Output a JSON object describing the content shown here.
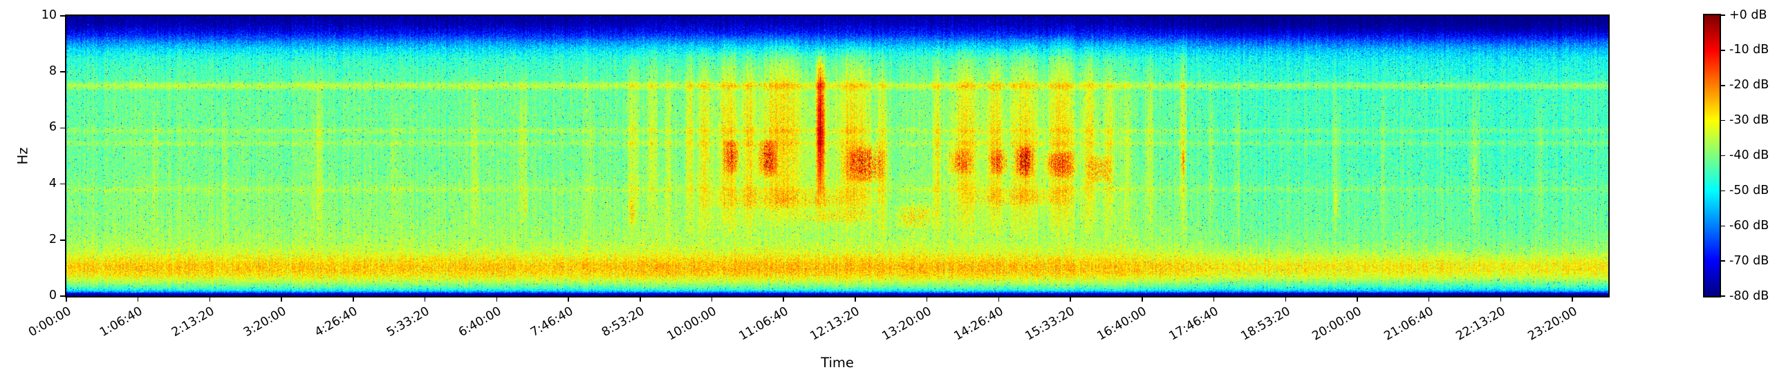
{
  "style": {
    "background_color": "#ffffff",
    "frame_color": "#000000",
    "text_color": "#000000"
  },
  "chart_data": {
    "type": "heatmap",
    "subtype": "spectrogram",
    "title": "",
    "xlabel": "Time",
    "ylabel": "Hz",
    "x_range_seconds": [
      0,
      86000
    ],
    "x_ticks": [
      {
        "seconds": 0,
        "label": "0:00:00"
      },
      {
        "seconds": 4000,
        "label": "1:06:40"
      },
      {
        "seconds": 8000,
        "label": "2:13:20"
      },
      {
        "seconds": 12000,
        "label": "3:20:00"
      },
      {
        "seconds": 16000,
        "label": "4:26:40"
      },
      {
        "seconds": 20000,
        "label": "5:33:20"
      },
      {
        "seconds": 24000,
        "label": "6:40:00"
      },
      {
        "seconds": 28000,
        "label": "7:46:40"
      },
      {
        "seconds": 32000,
        "label": "8:53:20"
      },
      {
        "seconds": 36000,
        "label": "10:00:00"
      },
      {
        "seconds": 40000,
        "label": "11:06:40"
      },
      {
        "seconds": 44000,
        "label": "12:13:20"
      },
      {
        "seconds": 48000,
        "label": "13:20:00"
      },
      {
        "seconds": 52000,
        "label": "14:26:40"
      },
      {
        "seconds": 56000,
        "label": "15:33:20"
      },
      {
        "seconds": 60000,
        "label": "16:40:00"
      },
      {
        "seconds": 64000,
        "label": "17:46:40"
      },
      {
        "seconds": 68000,
        "label": "18:53:20"
      },
      {
        "seconds": 72000,
        "label": "20:00:00"
      },
      {
        "seconds": 76000,
        "label": "21:06:40"
      },
      {
        "seconds": 80000,
        "label": "22:13:20"
      },
      {
        "seconds": 84000,
        "label": "23:20:00"
      }
    ],
    "y_range_hz": [
      0,
      10
    ],
    "y_ticks": [
      0,
      2,
      4,
      6,
      8,
      10
    ],
    "colorbar": {
      "colormap": "jet",
      "range_db": [
        -80,
        0
      ],
      "tick_values_db": [
        0,
        -10,
        -20,
        -30,
        -40,
        -50,
        -60,
        -70,
        -80
      ],
      "tick_labels": [
        "+0 dB",
        "-10 dB",
        "-20 dB",
        "-30 dB",
        "-40 dB",
        "-50 dB",
        "-60 dB",
        "-70 dB",
        "-80 dB"
      ]
    },
    "base_spectrum_db": [
      [
        0,
        -80
      ],
      [
        0.08,
        -77
      ],
      [
        0.13,
        -62
      ],
      [
        0.2,
        -50
      ],
      [
        0.3,
        -44
      ],
      [
        0.45,
        -38
      ],
      [
        0.6,
        -33
      ],
      [
        0.75,
        -28.5
      ],
      [
        0.95,
        -26
      ],
      [
        1.1,
        -26
      ],
      [
        1.3,
        -29
      ],
      [
        1.6,
        -34
      ],
      [
        2.0,
        -37
      ],
      [
        2.5,
        -38.5
      ],
      [
        3.0,
        -39
      ],
      [
        3.65,
        -39.5
      ],
      [
        3.8,
        -36.5
      ],
      [
        3.95,
        -39.5
      ],
      [
        4.5,
        -41
      ],
      [
        5.3,
        -41
      ],
      [
        5.45,
        -37.5
      ],
      [
        5.6,
        -41
      ],
      [
        5.75,
        -41
      ],
      [
        5.9,
        -37.5
      ],
      [
        6.05,
        -41.5
      ],
      [
        6.6,
        -41.5
      ],
      [
        7.1,
        -42
      ],
      [
        7.3,
        -42.5
      ],
      [
        7.5,
        -34.5
      ],
      [
        7.7,
        -43
      ],
      [
        8.1,
        -44.5
      ],
      [
        8.5,
        -47
      ],
      [
        8.8,
        -52
      ],
      [
        9.1,
        -60
      ],
      [
        9.4,
        -70
      ],
      [
        9.7,
        -76
      ],
      [
        10,
        -79
      ]
    ],
    "background_time_offset_db": [
      [
        0,
        -0.5
      ],
      [
        0.05,
        0
      ],
      [
        0.33,
        0
      ],
      [
        0.38,
        1
      ],
      [
        0.5,
        1.5
      ],
      [
        0.6,
        1
      ],
      [
        0.68,
        0.5
      ],
      [
        0.72,
        -1
      ],
      [
        0.745,
        -3
      ],
      [
        0.95,
        -3.5
      ],
      [
        1,
        -3
      ]
    ],
    "noise": {
      "jitter_db": 13,
      "column_jitter_db": 2.5,
      "dark_speckle_prob": 0.012,
      "dark_speckle_extra_db": -20,
      "bright_speckle_prob": 0.007,
      "bright_speckle_extra_db": 7
    },
    "events": [
      {
        "t0": 0.055,
        "t1": 0.06,
        "f0": 2,
        "f1": 7,
        "db": 3,
        "kind": "streak"
      },
      {
        "t0": 0.1,
        "t1": 0.105,
        "f0": 2,
        "f1": 7,
        "db": 3,
        "kind": "streak"
      },
      {
        "t0": 0.16,
        "t1": 0.168,
        "f0": 2,
        "f1": 8,
        "db": 5,
        "kind": "streak"
      },
      {
        "t0": 0.21,
        "t1": 0.216,
        "f0": 2,
        "f1": 7.5,
        "db": 4,
        "kind": "streak"
      },
      {
        "t0": 0.262,
        "t1": 0.268,
        "f0": 2,
        "f1": 8,
        "db": 5,
        "kind": "streak"
      },
      {
        "t0": 0.292,
        "t1": 0.3,
        "f0": 2,
        "f1": 8.5,
        "db": 6,
        "kind": "streak"
      },
      {
        "t0": 0.296,
        "t1": 0.3,
        "f0": 2.8,
        "f1": 3.8,
        "db": 6,
        "kind": "blob",
        "speckle": true
      },
      {
        "t0": 0.338,
        "t1": 0.343,
        "f0": 2,
        "f1": 7.5,
        "db": 3,
        "kind": "streak"
      },
      {
        "t0": 0.363,
        "t1": 0.372,
        "f0": 2,
        "f1": 8.8,
        "db": 7,
        "kind": "streak"
      },
      {
        "t0": 0.364,
        "t1": 0.37,
        "f0": 2.5,
        "f1": 3.6,
        "db": 8,
        "kind": "blob",
        "speckle": true
      },
      {
        "t0": 0.376,
        "t1": 0.384,
        "f0": 2.5,
        "f1": 9,
        "db": 6,
        "kind": "streak"
      },
      {
        "t0": 0.388,
        "t1": 0.393,
        "f0": 2,
        "f1": 8.5,
        "db": 5,
        "kind": "streak"
      },
      {
        "t0": 0.4,
        "t1": 0.535,
        "f0": 2.2,
        "f1": 8.8,
        "db": 4.5,
        "kind": "wash"
      },
      {
        "t0": 0.401,
        "t1": 0.407,
        "f0": 2,
        "f1": 9.2,
        "db": 7,
        "kind": "streak"
      },
      {
        "t0": 0.41,
        "t1": 0.418,
        "f0": 2,
        "f1": 9.0,
        "db": 7,
        "kind": "streak"
      },
      {
        "t0": 0.423,
        "t1": 0.435,
        "f0": 2,
        "f1": 9.3,
        "db": 8,
        "kind": "streak"
      },
      {
        "t0": 0.438,
        "t1": 0.447,
        "f0": 2,
        "f1": 9.0,
        "db": 7,
        "kind": "streak"
      },
      {
        "t0": 0.45,
        "t1": 0.478,
        "f0": 2.5,
        "f1": 9.4,
        "db": 8,
        "kind": "streak"
      },
      {
        "t0": 0.485,
        "t1": 0.494,
        "f0": 2.5,
        "f1": 9.0,
        "db": 9,
        "kind": "streak"
      },
      {
        "t0": 0.5,
        "t1": 0.522,
        "f0": 2.5,
        "f1": 9.2,
        "db": 8,
        "kind": "streak"
      },
      {
        "t0": 0.526,
        "t1": 0.533,
        "f0": 2,
        "f1": 8.5,
        "db": 6,
        "kind": "streak"
      },
      {
        "t0": 0.425,
        "t1": 0.438,
        "f0": 4.3,
        "f1": 5.6,
        "db": 20,
        "kind": "blob",
        "speckle": true
      },
      {
        "t0": 0.447,
        "t1": 0.462,
        "f0": 4.2,
        "f1": 5.6,
        "db": 24,
        "kind": "blob",
        "speckle": true
      },
      {
        "t0": 0.486,
        "t1": 0.492,
        "f0": 3.6,
        "f1": 8.6,
        "db": 21,
        "kind": "blob"
      },
      {
        "t0": 0.501,
        "t1": 0.535,
        "f0": 4.0,
        "f1": 5.4,
        "db": 23,
        "kind": "blob",
        "speckle": true
      },
      {
        "t0": 0.408,
        "t1": 0.535,
        "f0": 3.1,
        "f1": 3.8,
        "db": 8,
        "kind": "band",
        "speckle": true
      },
      {
        "t0": 0.47,
        "t1": 0.53,
        "f0": 2.6,
        "f1": 3.1,
        "db": 7,
        "kind": "band",
        "speckle": true
      },
      {
        "t0": 0.535,
        "t1": 0.566,
        "f0": 2.4,
        "f1": 3.3,
        "db": 10,
        "kind": "band",
        "speckle": true
      },
      {
        "t0": 0.56,
        "t1": 0.69,
        "f0": 2.2,
        "f1": 8.8,
        "db": 4,
        "kind": "wash"
      },
      {
        "t0": 0.561,
        "t1": 0.568,
        "f0": 2,
        "f1": 9.0,
        "db": 7,
        "kind": "streak"
      },
      {
        "t0": 0.575,
        "t1": 0.592,
        "f0": 2,
        "f1": 9.2,
        "db": 8,
        "kind": "streak"
      },
      {
        "t0": 0.597,
        "t1": 0.608,
        "f0": 2,
        "f1": 9.0,
        "db": 8,
        "kind": "streak"
      },
      {
        "t0": 0.612,
        "t1": 0.63,
        "f0": 2,
        "f1": 9.3,
        "db": 8,
        "kind": "streak"
      },
      {
        "t0": 0.636,
        "t1": 0.654,
        "f0": 2,
        "f1": 9.4,
        "db": 8,
        "kind": "streak"
      },
      {
        "t0": 0.659,
        "t1": 0.668,
        "f0": 2,
        "f1": 9.2,
        "db": 8,
        "kind": "streak"
      },
      {
        "t0": 0.673,
        "t1": 0.68,
        "f0": 2,
        "f1": 8.8,
        "db": 6,
        "kind": "streak"
      },
      {
        "t0": 0.686,
        "t1": 0.692,
        "f0": 2,
        "f1": 8.5,
        "db": 5,
        "kind": "streak"
      },
      {
        "t0": 0.569,
        "t1": 0.59,
        "f0": 4.3,
        "f1": 5.3,
        "db": 16,
        "kind": "blob",
        "speckle": true
      },
      {
        "t0": 0.597,
        "t1": 0.612,
        "f0": 4.3,
        "f1": 5.3,
        "db": 18,
        "kind": "blob",
        "speckle": true
      },
      {
        "t0": 0.614,
        "t1": 0.629,
        "f0": 4.2,
        "f1": 5.4,
        "db": 27,
        "kind": "blob",
        "speckle": true
      },
      {
        "t0": 0.632,
        "t1": 0.658,
        "f0": 4.2,
        "f1": 5.2,
        "db": 20,
        "kind": "blob",
        "speckle": true
      },
      {
        "t0": 0.66,
        "t1": 0.68,
        "f0": 4.0,
        "f1": 5.1,
        "db": 15,
        "kind": "blob",
        "speckle": true
      },
      {
        "t0": 0.578,
        "t1": 0.66,
        "f0": 3.2,
        "f1": 3.8,
        "db": 8,
        "kind": "band",
        "speckle": true
      },
      {
        "t0": 0.699,
        "t1": 0.706,
        "f0": 2,
        "f1": 9.0,
        "db": 6,
        "kind": "streak"
      },
      {
        "t0": 0.7215,
        "t1": 0.727,
        "f0": 2,
        "f1": 9.5,
        "db": 9,
        "kind": "streak"
      },
      {
        "t0": 0.7225,
        "t1": 0.726,
        "f0": 4.3,
        "f1": 5.3,
        "db": 14,
        "kind": "blob",
        "speckle": true
      },
      {
        "t0": 0.74,
        "t1": 0.745,
        "f0": 2,
        "f1": 8,
        "db": 4,
        "kind": "streak"
      },
      {
        "t0": 0.757,
        "t1": 0.762,
        "f0": 2,
        "f1": 8,
        "db": 3.5,
        "kind": "streak"
      },
      {
        "t0": 0.82,
        "t1": 0.827,
        "f0": 2,
        "f1": 7.8,
        "db": 4.5,
        "kind": "streak"
      },
      {
        "t0": 0.8215,
        "t1": 0.8255,
        "f0": 2.8,
        "f1": 3.8,
        "db": 7,
        "kind": "blob",
        "speckle": true
      },
      {
        "t0": 0.851,
        "t1": 0.856,
        "f0": 2,
        "f1": 7.5,
        "db": 3.5,
        "kind": "streak"
      },
      {
        "t0": 0.909,
        "t1": 0.917,
        "f0": 2,
        "f1": 8,
        "db": 4.5,
        "kind": "streak"
      },
      {
        "t0": 0.9115,
        "t1": 0.9155,
        "f0": 4.3,
        "f1": 5.1,
        "db": 7,
        "kind": "blob",
        "speckle": true
      },
      {
        "t0": 0.953,
        "t1": 0.959,
        "f0": 2,
        "f1": 7.5,
        "db": 3,
        "kind": "streak"
      }
    ]
  }
}
